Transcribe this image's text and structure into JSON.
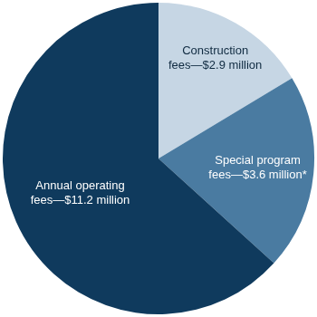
{
  "chart_data": {
    "type": "pie",
    "categories": [
      "Construction fees—$2.9 million",
      "Special program fees—$3.6 million*",
      "Annual operating fees—$11.2 million"
    ],
    "values": [
      2.9,
      3.6,
      11.2
    ],
    "colors": [
      "#c6d6e4",
      "#4a7ba1",
      "#0f3a5d"
    ],
    "data_labels": true
  }
}
